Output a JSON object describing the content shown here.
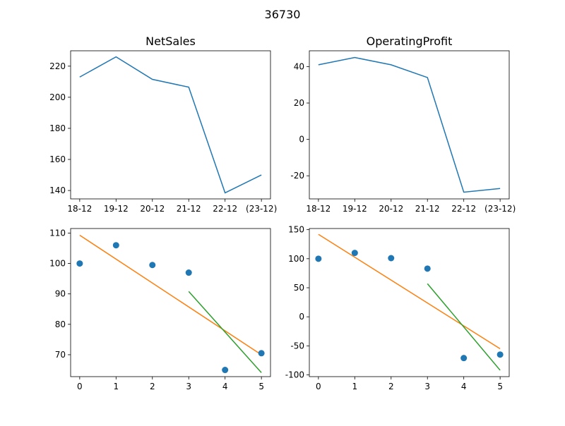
{
  "figure": {
    "suptitle": "36730"
  },
  "colors": {
    "line": "#1f77b4",
    "trend": "#ff7f0e",
    "recent": "#2ca02c",
    "scatter": "#1f77b4"
  },
  "chart_data": [
    {
      "type": "line",
      "title": "NetSales",
      "x": [
        "18-12",
        "19-12",
        "20-12",
        "21-12",
        "22-12",
        "(23-12)"
      ],
      "values": [
        213,
        226,
        211.5,
        206.5,
        138.5,
        150
      ],
      "ylim": [
        134.6,
        229.9
      ],
      "yticks": [
        140,
        160,
        180,
        200,
        220
      ]
    },
    {
      "type": "line",
      "title": "OperatingProfit",
      "x": [
        "18-12",
        "19-12",
        "20-12",
        "21-12",
        "22-12",
        "(23-12)"
      ],
      "values": [
        41,
        45,
        41,
        34,
        -29,
        -27
      ],
      "ylim": [
        -32.7,
        48.7
      ],
      "yticks": [
        -20,
        0,
        20,
        40
      ]
    },
    {
      "type": "scatter",
      "title": "",
      "x": [
        0,
        1,
        2,
        3,
        4,
        5
      ],
      "values": [
        100,
        106,
        99.5,
        97,
        65,
        70.5
      ],
      "trend": {
        "x": [
          0,
          5
        ],
        "y": [
          109.3,
          70.0
        ]
      },
      "recent_trend": {
        "x": [
          3,
          5
        ],
        "y": [
          90.8,
          64.1
        ]
      },
      "xlim": [
        -0.25,
        5.25
      ],
      "ylim": [
        62.8,
        111.5
      ],
      "xticks": [
        0,
        1,
        2,
        3,
        4,
        5
      ],
      "yticks": [
        70,
        80,
        90,
        100,
        110
      ]
    },
    {
      "type": "scatter",
      "title": "",
      "x": [
        0,
        1,
        2,
        3,
        4,
        5
      ],
      "values": [
        100,
        110,
        101,
        83,
        -71,
        -65
      ],
      "trend": {
        "x": [
          0,
          5
        ],
        "y": [
          142,
          -55
        ]
      },
      "recent_trend": {
        "x": [
          3,
          5
        ],
        "y": [
          57,
          -92
        ]
      },
      "xlim": [
        -0.25,
        5.25
      ],
      "ylim": [
        -103,
        152
      ],
      "xticks": [
        0,
        1,
        2,
        3,
        4,
        5
      ],
      "yticks": [
        -100,
        -50,
        0,
        50,
        100,
        150
      ]
    }
  ]
}
